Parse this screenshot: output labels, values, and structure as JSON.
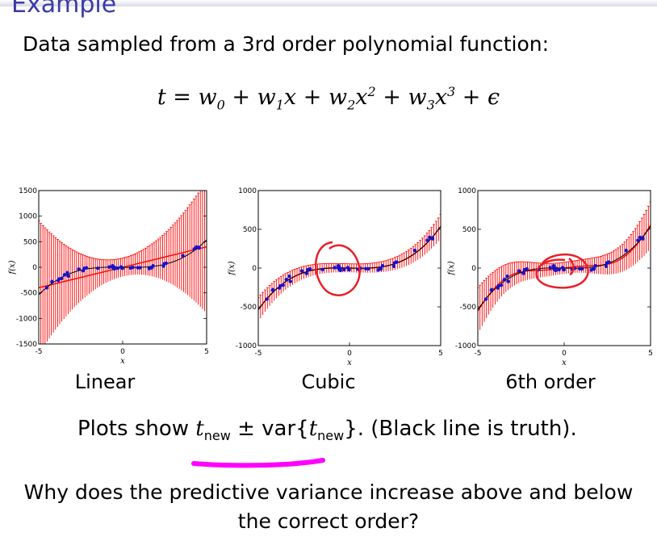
{
  "slide": {
    "title": "Example",
    "subtitle": "Data sampled from a 3rd order polynomial function:",
    "equation": {
      "lhs": "t",
      "terms": [
        "w",
        "0",
        "w",
        "1",
        "x",
        "w",
        "2",
        "x",
        "2",
        "w",
        "3",
        "x",
        "3",
        "ϵ"
      ]
    },
    "caption_prefix": "Plots show ",
    "caption_t": "t",
    "caption_new": "new",
    "caption_pm": " ± var{",
    "caption_t2": "t",
    "caption_new2": "new",
    "caption_suffix": "}. (Black line is truth).",
    "question_line1": "Why does the predictive variance increase above and below",
    "question_line2": "the correct order?"
  },
  "chart_data": [
    {
      "type": "line",
      "label": "Linear",
      "xlabel": "x",
      "ylabel": "f(x)",
      "xlim": [
        -5,
        5
      ],
      "ylim": [
        -1500,
        1500
      ],
      "yticks": [
        "-1500",
        "-1000",
        "-500",
        "0",
        "500",
        "1000",
        "1500"
      ],
      "xticks": [
        "-5",
        "0",
        "5"
      ],
      "model": "linear",
      "mean_coeffs": [
        0,
        80
      ],
      "band_base": 180,
      "band_growth": 45
    },
    {
      "type": "line",
      "label": "Cubic",
      "xlabel": "x",
      "ylabel": "f(x)",
      "xlim": [
        -5,
        5
      ],
      "ylim": [
        -1000,
        1000
      ],
      "yticks": [
        "-1000",
        "-500",
        "0",
        "500",
        "1000"
      ],
      "xticks": [
        "-5",
        "0",
        "5"
      ],
      "model": "cubic",
      "band_base": 55,
      "band_growth": 4
    },
    {
      "type": "line",
      "label": "6th order",
      "xlabel": "x",
      "ylabel": "f(x)",
      "xlim": [
        -5,
        5
      ],
      "ylim": [
        -1000,
        1000
      ],
      "yticks": [
        "-1000",
        "-500",
        "0",
        "500",
        "1000"
      ],
      "xticks": [
        "-5",
        "0",
        "5"
      ],
      "model": "sixth",
      "band_base": 75,
      "band_growth": 9
    }
  ],
  "colors": {
    "title": "#3a3aa6",
    "band": "#ff0000",
    "points": "#1414c8",
    "annotation_red": "#e8202a",
    "annotation_magenta": "#ff00ff"
  }
}
